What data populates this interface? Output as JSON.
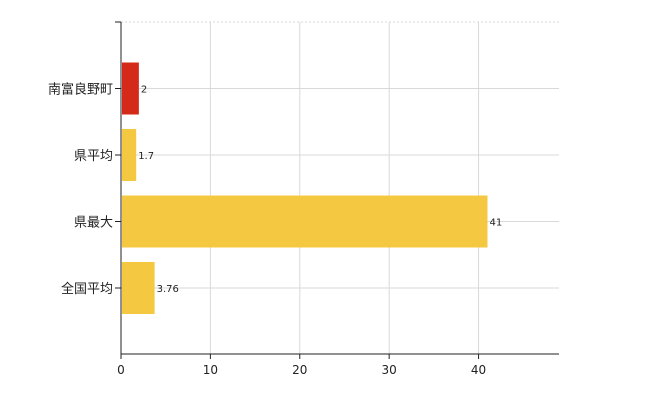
{
  "chart_data": {
    "type": "bar",
    "orientation": "horizontal",
    "categories": [
      "南富良野町",
      "県平均",
      "県最大",
      "全国平均"
    ],
    "values": [
      2,
      1.7,
      41,
      3.76
    ],
    "data_labels": [
      "2",
      "1.7",
      "41",
      "3.76"
    ],
    "bar_colors": [
      "#d42a1a",
      "#f5c842",
      "#f5c842",
      "#f5c842"
    ],
    "xlim": [
      0,
      49
    ],
    "xticks": [
      0,
      10,
      20,
      30,
      40
    ],
    "grid": true,
    "title": "",
    "xlabel": "",
    "ylabel": ""
  }
}
